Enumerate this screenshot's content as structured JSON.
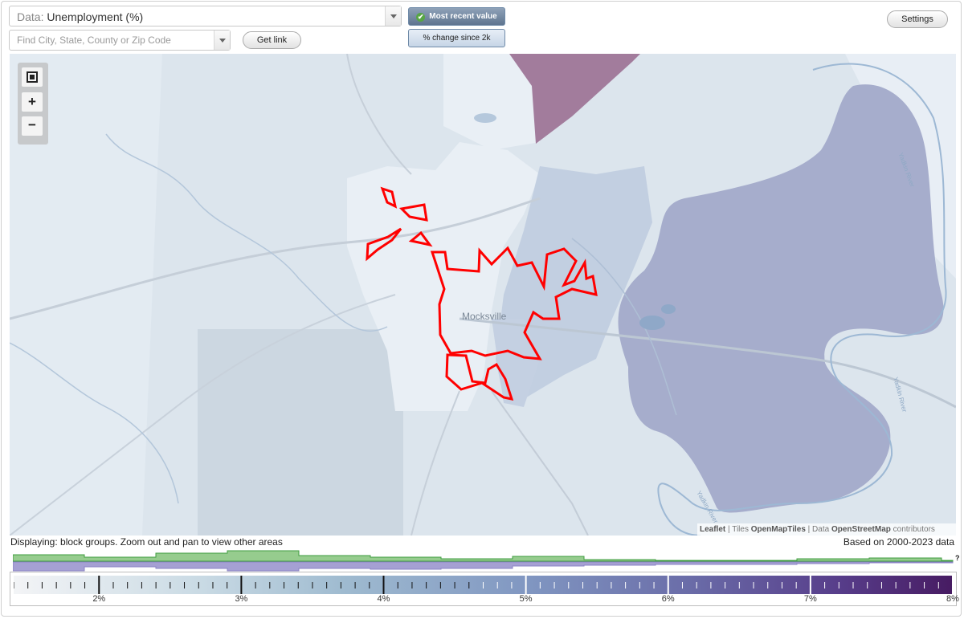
{
  "controls": {
    "data_prefix": "Data:",
    "data_value": "Unemployment (%)",
    "search_placeholder": "Find City, State, County or Zip Code",
    "get_link_label": "Get link",
    "toggle_recent_label": "Most recent value",
    "toggle_change_label": "% change since 2k",
    "settings_label": "Settings"
  },
  "map": {
    "city_label": "Mocksville",
    "river_labels": [
      "Yadkin River",
      "Yadkin River",
      "Yadkin River"
    ],
    "attribution": {
      "leaflet": "Leaflet",
      "sep1": " | Tiles ",
      "tiles": "OpenMapTiles",
      "sep2": " | Data ",
      "data": "OpenStreetMap",
      "contrib": " contributors"
    },
    "colors": {
      "highlight": "#ff0000",
      "high_value": "#9b6b96",
      "mid_value": "#a6adcc",
      "low_value": "#e4ebf3"
    }
  },
  "footer": {
    "displaying": "Displaying: block groups. Zoom out and pan to view other areas",
    "based_on": "Based on 2000-2023 data",
    "help": "?"
  },
  "legend": {
    "min": 1.4,
    "max": 8.0,
    "labels": [
      "2%",
      "3%",
      "4%",
      "5%",
      "6%",
      "7%",
      "8%"
    ],
    "label_values": [
      2,
      3,
      4,
      5,
      6,
      7,
      8
    ],
    "colors": [
      "#f3f4f6",
      "#9fbbd0",
      "#6a6ca8",
      "#471b62"
    ]
  }
}
